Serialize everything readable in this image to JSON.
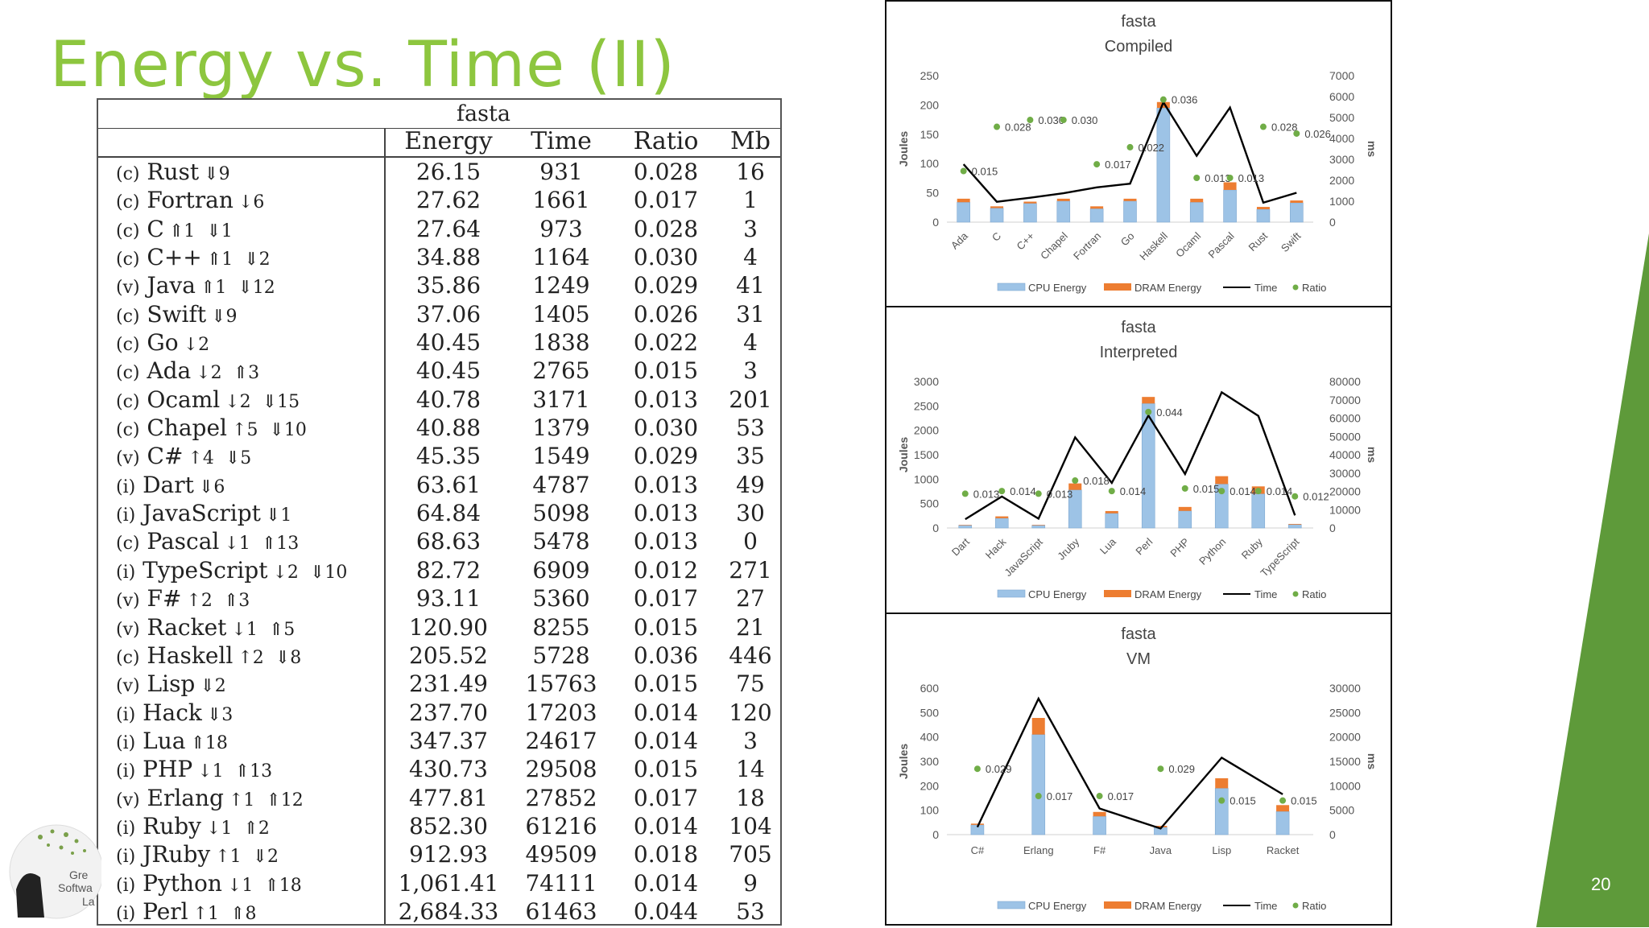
{
  "slide": {
    "title": "Energy vs. Time (II)",
    "number": "20"
  },
  "table": {
    "title": "fasta",
    "headers": [
      "Energy",
      "Time",
      "Ratio",
      "Mb"
    ],
    "rows": [
      {
        "tag": "(c)",
        "name": "Rust",
        "marks": "⇓9",
        "energy": "26.15",
        "time": "931",
        "ratio": "0.028",
        "mb": "16"
      },
      {
        "tag": "(c)",
        "name": "Fortran",
        "marks": "↓6",
        "energy": "27.62",
        "time": "1661",
        "ratio": "0.017",
        "mb": "1"
      },
      {
        "tag": "(c)",
        "name": "C",
        "marks": "⇑1  ⇓1",
        "energy": "27.64",
        "time": "973",
        "ratio": "0.028",
        "mb": "3"
      },
      {
        "tag": "(c)",
        "name": "C++",
        "marks": "⇑1  ⇓2",
        "energy": "34.88",
        "time": "1164",
        "ratio": "0.030",
        "mb": "4"
      },
      {
        "tag": "(v)",
        "name": "Java",
        "marks": "⇑1  ⇓12",
        "energy": "35.86",
        "time": "1249",
        "ratio": "0.029",
        "mb": "41"
      },
      {
        "tag": "(c)",
        "name": "Swift",
        "marks": "⇓9",
        "energy": "37.06",
        "time": "1405",
        "ratio": "0.026",
        "mb": "31"
      },
      {
        "tag": "(c)",
        "name": "Go",
        "marks": "↓2",
        "energy": "40.45",
        "time": "1838",
        "ratio": "0.022",
        "mb": "4"
      },
      {
        "tag": "(c)",
        "name": "Ada",
        "marks": "↓2  ⇑3",
        "energy": "40.45",
        "time": "2765",
        "ratio": "0.015",
        "mb": "3"
      },
      {
        "tag": "(c)",
        "name": "Ocaml",
        "marks": "↓2  ⇓15",
        "energy": "40.78",
        "time": "3171",
        "ratio": "0.013",
        "mb": "201"
      },
      {
        "tag": "(c)",
        "name": "Chapel",
        "marks": "↑5  ⇓10",
        "energy": "40.88",
        "time": "1379",
        "ratio": "0.030",
        "mb": "53"
      },
      {
        "tag": "(v)",
        "name": "C#",
        "marks": "↑4  ⇓5",
        "energy": "45.35",
        "time": "1549",
        "ratio": "0.029",
        "mb": "35"
      },
      {
        "tag": "(i)",
        "name": "Dart",
        "marks": "⇓6",
        "energy": "63.61",
        "time": "4787",
        "ratio": "0.013",
        "mb": "49"
      },
      {
        "tag": "(i)",
        "name": "JavaScript",
        "marks": "⇓1",
        "energy": "64.84",
        "time": "5098",
        "ratio": "0.013",
        "mb": "30"
      },
      {
        "tag": "(c)",
        "name": "Pascal",
        "marks": "↓1  ⇑13",
        "energy": "68.63",
        "time": "5478",
        "ratio": "0.013",
        "mb": "0"
      },
      {
        "tag": "(i)",
        "name": "TypeScript",
        "marks": "↓2  ⇓10",
        "energy": "82.72",
        "time": "6909",
        "ratio": "0.012",
        "mb": "271"
      },
      {
        "tag": "(v)",
        "name": "F#",
        "marks": "↑2  ⇑3",
        "energy": "93.11",
        "time": "5360",
        "ratio": "0.017",
        "mb": "27"
      },
      {
        "tag": "(v)",
        "name": "Racket",
        "marks": "↓1  ⇑5",
        "energy": "120.90",
        "time": "8255",
        "ratio": "0.015",
        "mb": "21"
      },
      {
        "tag": "(c)",
        "name": "Haskell",
        "marks": "↑2  ⇓8",
        "energy": "205.52",
        "time": "5728",
        "ratio": "0.036",
        "mb": "446"
      },
      {
        "tag": "(v)",
        "name": "Lisp",
        "marks": "⇓2",
        "energy": "231.49",
        "time": "15763",
        "ratio": "0.015",
        "mb": "75"
      },
      {
        "tag": "(i)",
        "name": "Hack",
        "marks": "⇓3",
        "energy": "237.70",
        "time": "17203",
        "ratio": "0.014",
        "mb": "120"
      },
      {
        "tag": "(i)",
        "name": "Lua",
        "marks": "⇑18",
        "energy": "347.37",
        "time": "24617",
        "ratio": "0.014",
        "mb": "3"
      },
      {
        "tag": "(i)",
        "name": "PHP",
        "marks": "↓1  ⇑13",
        "energy": "430.73",
        "time": "29508",
        "ratio": "0.015",
        "mb": "14"
      },
      {
        "tag": "(v)",
        "name": "Erlang",
        "marks": "↑1  ⇑12",
        "energy": "477.81",
        "time": "27852",
        "ratio": "0.017",
        "mb": "18"
      },
      {
        "tag": "(i)",
        "name": "Ruby",
        "marks": "↓1  ⇑2",
        "energy": "852.30",
        "time": "61216",
        "ratio": "0.014",
        "mb": "104"
      },
      {
        "tag": "(i)",
        "name": "JRuby",
        "marks": "↑1  ⇓2",
        "energy": "912.93",
        "time": "49509",
        "ratio": "0.018",
        "mb": "705"
      },
      {
        "tag": "(i)",
        "name": "Python",
        "marks": "↓1  ⇑18",
        "energy": "1,061.41",
        "time": "74111",
        "ratio": "0.014",
        "mb": "9"
      },
      {
        "tag": "(i)",
        "name": "Perl",
        "marks": "↑1  ⇑8",
        "energy": "2,684.33",
        "time": "61463",
        "ratio": "0.044",
        "mb": "53"
      }
    ]
  },
  "chart_data": [
    {
      "type": "bar",
      "title": "fasta",
      "subtitle": "Compiled",
      "ylabel": "Joules",
      "y2label": "ms",
      "ylim": [
        0,
        250
      ],
      "yticks": [
        0,
        50,
        100,
        150,
        200,
        250
      ],
      "y2lim": [
        0,
        7000
      ],
      "y2ticks": [
        0,
        1000,
        2000,
        3000,
        4000,
        5000,
        6000,
        7000
      ],
      "categories": [
        "Ada",
        "C",
        "C++",
        "Chapel",
        "Fortran",
        "Go",
        "Haskell",
        "Ocaml",
        "Pascal",
        "Rust",
        "Swift"
      ],
      "series": [
        {
          "name": "CPU Energy",
          "kind": "bar",
          "values": [
            34,
            24,
            32,
            36,
            23,
            36,
            195,
            34,
            55,
            22,
            33
          ]
        },
        {
          "name": "DRAM Energy",
          "kind": "bar",
          "values": [
            6,
            3,
            3,
            4,
            4,
            4,
            10,
            6,
            13,
            4,
            4
          ]
        },
        {
          "name": "Time",
          "kind": "line",
          "values": [
            2765,
            973,
            1164,
            1379,
            1661,
            1838,
            5728,
            3171,
            5478,
            931,
            1405
          ]
        },
        {
          "name": "Ratio",
          "kind": "scatter",
          "values": [
            0.015,
            0.028,
            0.03,
            0.03,
            0.017,
            0.022,
            0.036,
            0.013,
            0.013,
            0.028,
            0.026
          ],
          "labels": [
            "0.015",
            "0.028",
            "0.030",
            "0.030",
            "0.017",
            "0.022",
            "0.036",
            "0.013",
            "0.013",
            "0.028",
            "0.026"
          ]
        }
      ],
      "legend": [
        "CPU Energy",
        "DRAM Energy",
        "Time",
        "Ratio"
      ],
      "legend_position": "bottom",
      "colors": {
        "cpu": "#9dc3e6",
        "dram": "#ed7d31",
        "time": "#000000",
        "ratio": "#70ad47"
      }
    },
    {
      "type": "bar",
      "title": "fasta",
      "subtitle": "Interpreted",
      "ylabel": "Joules",
      "y2label": "ms",
      "ylim": [
        0,
        3000
      ],
      "yticks": [
        0,
        500,
        1000,
        1500,
        2000,
        2500,
        3000
      ],
      "y2lim": [
        0,
        80000
      ],
      "y2ticks": [
        0,
        10000,
        20000,
        30000,
        40000,
        50000,
        60000,
        70000,
        80000
      ],
      "categories": [
        "Dart",
        "Hack",
        "JavaScript",
        "Jruby",
        "Lua",
        "Perl",
        "PHP",
        "Python",
        "Ruby",
        "TypeScript"
      ],
      "series": [
        {
          "name": "CPU Energy",
          "kind": "bar",
          "values": [
            55,
            200,
            55,
            780,
            300,
            2550,
            350,
            900,
            700,
            70
          ]
        },
        {
          "name": "DRAM Energy",
          "kind": "bar",
          "values": [
            9,
            38,
            10,
            133,
            47,
            134,
            81,
            161,
            152,
            13
          ]
        },
        {
          "name": "Time",
          "kind": "line",
          "values": [
            4787,
            17203,
            5098,
            49509,
            24617,
            61463,
            29508,
            74111,
            61216,
            6909
          ]
        },
        {
          "name": "Ratio",
          "kind": "scatter",
          "values": [
            0.013,
            0.014,
            0.013,
            0.018,
            0.014,
            0.044,
            0.015,
            0.014,
            0.014,
            0.012
          ],
          "labels": [
            "0.013",
            "0.014",
            "0.013",
            "0.018",
            "0.014",
            "0.044",
            "0.015",
            "0.014",
            "0.014",
            "0.012"
          ]
        }
      ],
      "legend": [
        "CPU Energy",
        "DRAM Energy",
        "Time",
        "Ratio"
      ],
      "legend_position": "bottom",
      "colors": {
        "cpu": "#9dc3e6",
        "dram": "#ed7d31",
        "time": "#000000",
        "ratio": "#70ad47"
      }
    },
    {
      "type": "bar",
      "title": "fasta",
      "subtitle": "VM",
      "ylabel": "Joules",
      "y2label": "ms",
      "ylim": [
        0,
        600
      ],
      "yticks": [
        0,
        100,
        200,
        300,
        400,
        500,
        600
      ],
      "y2lim": [
        0,
        30000
      ],
      "y2ticks": [
        0,
        5000,
        10000,
        15000,
        20000,
        25000,
        30000
      ],
      "categories": [
        "C#",
        "Erlang",
        "F#",
        "Java",
        "Lisp",
        "Racket"
      ],
      "series": [
        {
          "name": "CPU Energy",
          "kind": "bar",
          "values": [
            40,
            410,
            75,
            30,
            190,
            95
          ]
        },
        {
          "name": "DRAM Energy",
          "kind": "bar",
          "values": [
            5,
            68,
            18,
            6,
            41,
            26
          ]
        },
        {
          "name": "Time",
          "kind": "line",
          "values": [
            1549,
            27852,
            5360,
            1249,
            15763,
            8255
          ]
        },
        {
          "name": "Ratio",
          "kind": "scatter",
          "values": [
            0.029,
            0.017,
            0.017,
            0.029,
            0.015,
            0.015
          ],
          "labels": [
            "0.029",
            "0.017",
            "0.017",
            "0.029",
            "0.015",
            "0.015"
          ]
        }
      ],
      "legend": [
        "CPU Energy",
        "DRAM Energy",
        "Time",
        "Ratio"
      ],
      "legend_position": "bottom",
      "colors": {
        "cpu": "#9dc3e6",
        "dram": "#ed7d31",
        "time": "#000000",
        "ratio": "#70ad47"
      }
    }
  ],
  "theme": {
    "accent": "#8dc63f",
    "wedge": "#5e9a3a"
  }
}
